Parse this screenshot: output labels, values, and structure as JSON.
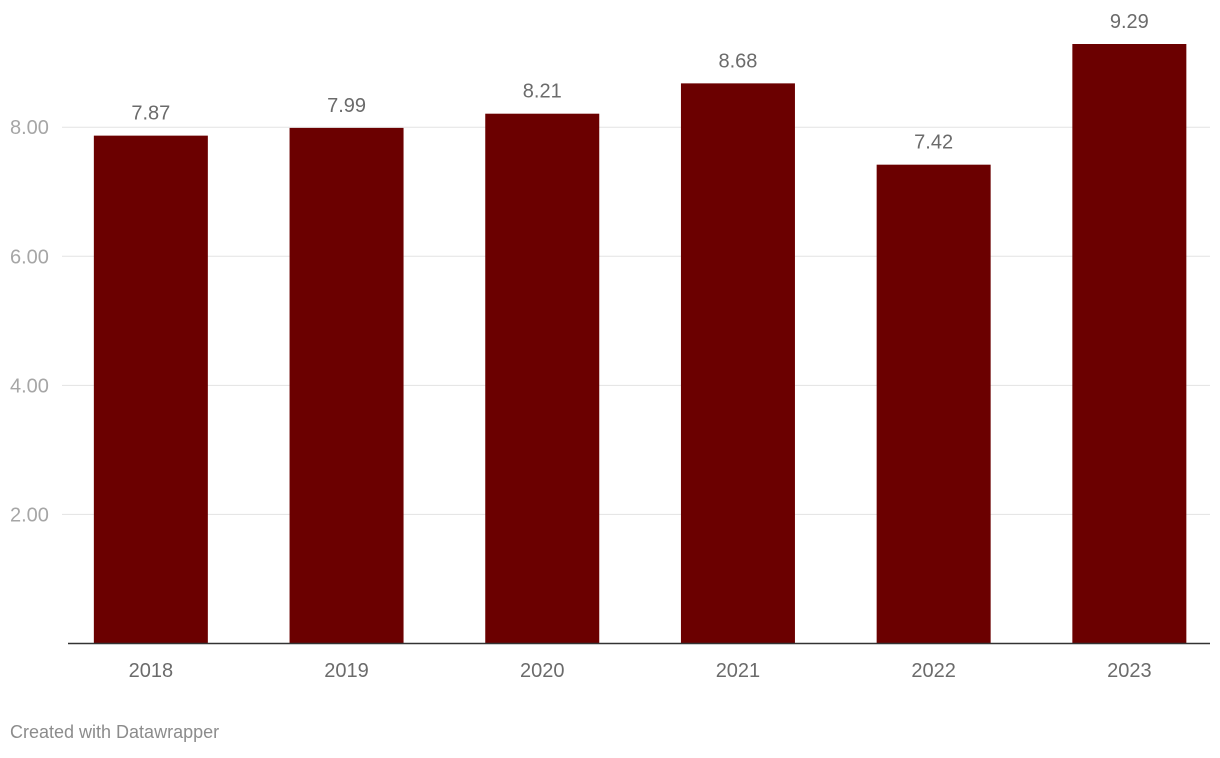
{
  "chart_data": {
    "type": "bar",
    "categories": [
      "2018",
      "2019",
      "2020",
      "2021",
      "2022",
      "2023"
    ],
    "values": [
      7.87,
      7.99,
      8.21,
      8.68,
      7.42,
      9.29
    ],
    "value_labels": [
      "7.87",
      "7.99",
      "8.21",
      "8.68",
      "7.42",
      "9.29"
    ],
    "yticks": [
      2,
      4,
      6,
      8
    ],
    "ytick_labels": [
      "2.00",
      "4.00",
      "6.00",
      "8.00"
    ],
    "ylim": [
      0,
      9.29
    ],
    "grid": true,
    "bar_color": "#6b0000"
  },
  "footer": {
    "credit": "Created with Datawrapper"
  }
}
